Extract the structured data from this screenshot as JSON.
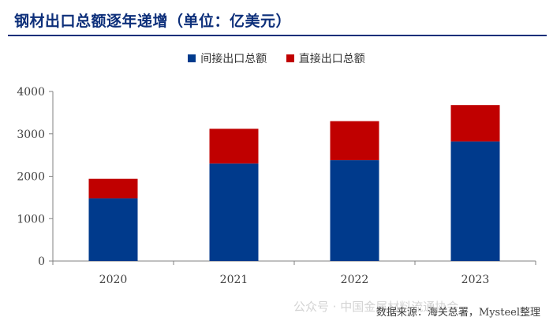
{
  "title": "钢材出口总额逐年递增（单位：亿美元）",
  "source": "数据来源：海关总署，Mysteel整理",
  "watermark": "公众号 · 中国金属材料流通协会",
  "colors": {
    "indirect": "#003a8c",
    "direct": "#c00000",
    "title": "#0d2f7a"
  },
  "chart_data": {
    "type": "bar",
    "stacked": true,
    "categories": [
      "2020",
      "2021",
      "2022",
      "2023"
    ],
    "series": [
      {
        "name": "间接出口总额",
        "values": [
          1480,
          2300,
          2380,
          2820
        ]
      },
      {
        "name": "直接出口总额",
        "values": [
          460,
          820,
          920,
          860
        ]
      }
    ],
    "ylim": [
      0,
      4000
    ],
    "yticks": [
      0,
      1000,
      2000,
      3000,
      4000
    ],
    "legend_position": "top",
    "grid": false
  }
}
